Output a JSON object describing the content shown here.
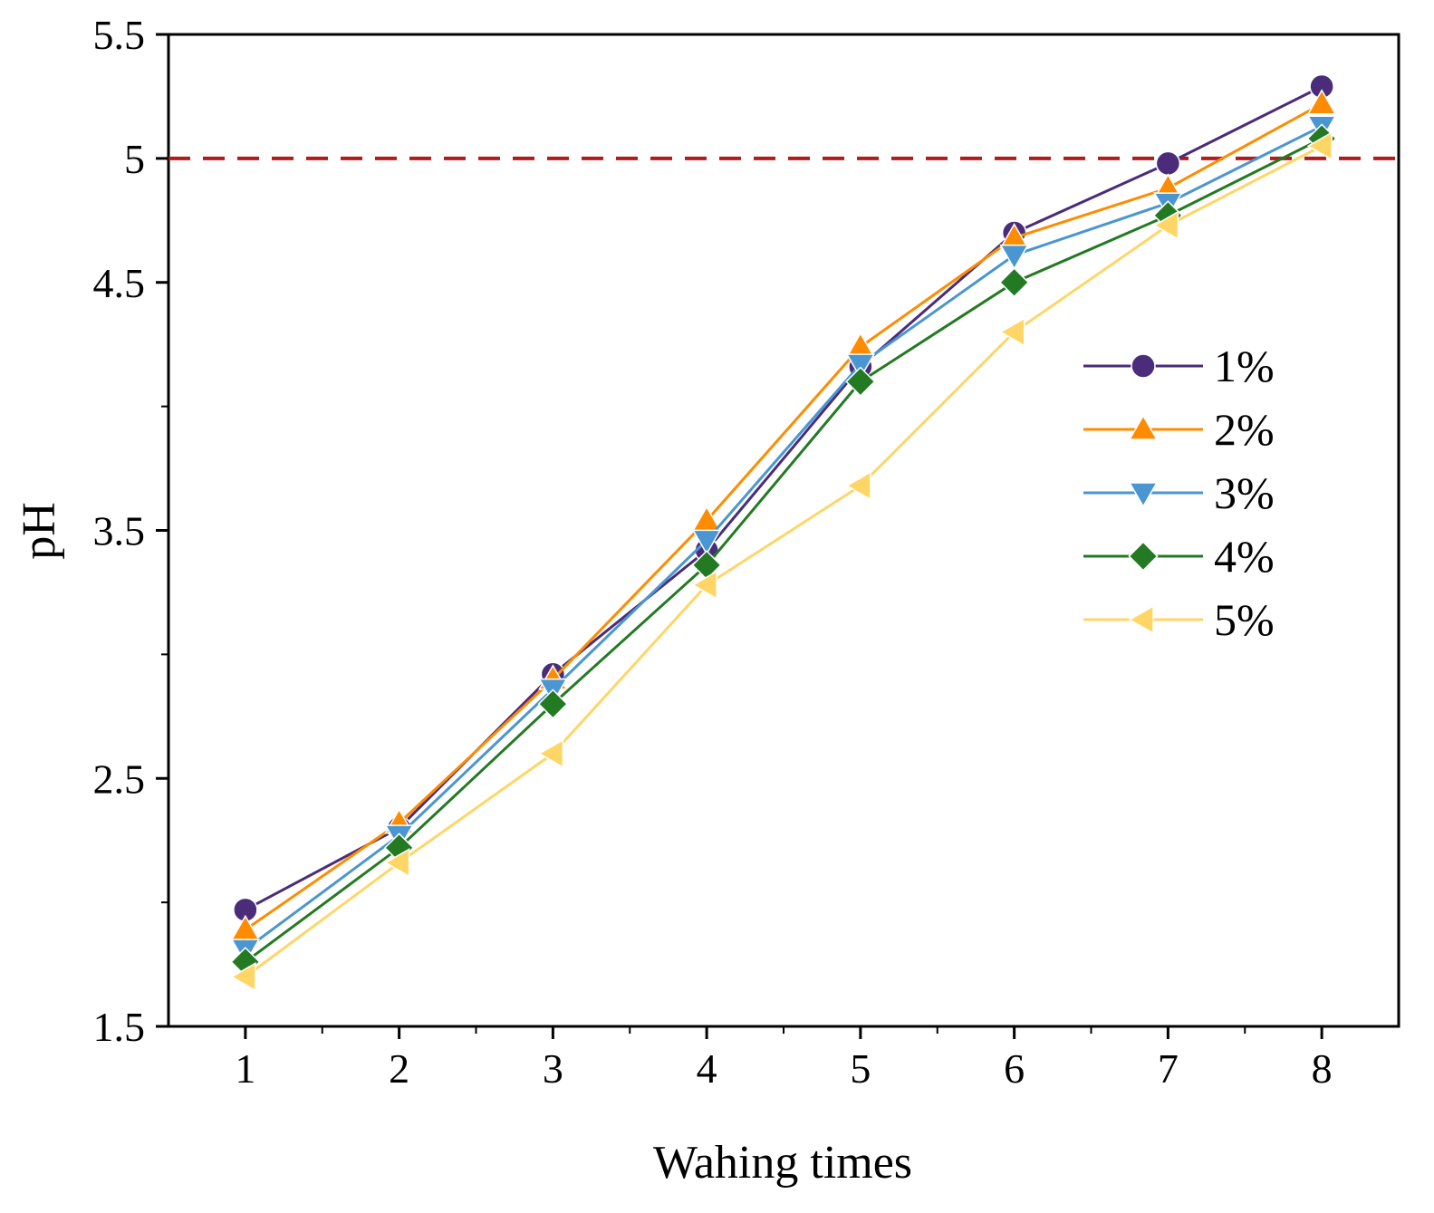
{
  "chart_data": {
    "type": "line",
    "xlabel": "Wahing times",
    "ylabel": "pH",
    "x": [
      1,
      2,
      3,
      4,
      5,
      6,
      7,
      8
    ],
    "xlim": [
      0.5,
      8.5
    ],
    "ylim": [
      1.5,
      5.5
    ],
    "xticks": [
      "1",
      "2",
      "3",
      "4",
      "5",
      "6",
      "7",
      "8"
    ],
    "yticks": [
      {
        "value": 1.5,
        "label": "1.5"
      },
      {
        "value": 2.5,
        "label": "2.5"
      },
      {
        "value": 3.5,
        "label": "3.5"
      },
      {
        "value": 4.5,
        "label": "4.5"
      },
      {
        "value": 5,
        "label": "5"
      },
      {
        "value": 5.5,
        "label": "5.5"
      }
    ],
    "reference_line": {
      "y": 5.0,
      "color": "#b01c1c",
      "style": "dashed"
    },
    "grid": false,
    "legend_position": "right",
    "series": [
      {
        "name": "1%",
        "color": "#4a2c7a",
        "marker": "circle",
        "values": [
          1.97,
          2.3,
          2.92,
          3.42,
          4.16,
          4.7,
          4.98,
          5.29
        ]
      },
      {
        "name": "2%",
        "color": "#ff8c00",
        "marker": "triangle-up",
        "values": [
          1.89,
          2.32,
          2.9,
          3.54,
          4.24,
          4.68,
          4.88,
          5.22
        ]
      },
      {
        "name": "3%",
        "color": "#4a96d2",
        "marker": "triangle-down",
        "values": [
          1.81,
          2.27,
          2.86,
          3.46,
          4.17,
          4.61,
          4.82,
          5.13
        ]
      },
      {
        "name": "4%",
        "color": "#237a23",
        "marker": "diamond",
        "values": [
          1.76,
          2.22,
          2.8,
          3.36,
          4.1,
          4.5,
          4.77,
          5.08
        ]
      },
      {
        "name": "5%",
        "color": "#ffd666",
        "marker": "triangle-left",
        "values": [
          1.7,
          2.16,
          2.6,
          3.28,
          3.68,
          4.3,
          4.73,
          5.05
        ]
      }
    ]
  }
}
